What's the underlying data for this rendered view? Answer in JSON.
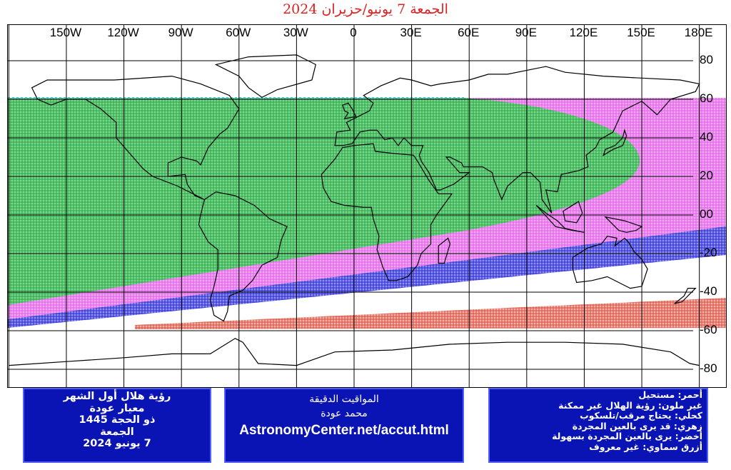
{
  "title": "الجمعة 7 يونيو/حزيران 2024",
  "map": {
    "longitude_labels": [
      {
        "text": "150W",
        "lon": -150
      },
      {
        "text": "120W",
        "lon": -120
      },
      {
        "text": "90W",
        "lon": -90
      },
      {
        "text": "60W",
        "lon": -60
      },
      {
        "text": "30W",
        "lon": -30
      },
      {
        "text": "0",
        "lon": 0
      },
      {
        "text": "30E",
        "lon": 30
      },
      {
        "text": "60E",
        "lon": 60
      },
      {
        "text": "90E",
        "lon": 90
      },
      {
        "text": "120E",
        "lon": 120
      },
      {
        "text": "150E",
        "lon": 150
      },
      {
        "text": "180E",
        "lon": 180
      }
    ],
    "latitude_labels": [
      {
        "text": "80",
        "lat": 80
      },
      {
        "text": "60",
        "lat": 60
      },
      {
        "text": "40",
        "lat": 40
      },
      {
        "text": "20",
        "lat": 20
      },
      {
        "text": "00",
        "lat": 0
      },
      {
        "text": "-20",
        "lat": -20
      },
      {
        "text": "-40",
        "lat": -40
      },
      {
        "text": "-60",
        "lat": -60
      },
      {
        "text": "-80",
        "lat": -80
      }
    ],
    "zone_colors": {
      "green": "#2fa64a",
      "magenta": "#e47ae8",
      "blue": "#3a3ad8",
      "red": "#e06050",
      "cyan": "#40c8e0"
    }
  },
  "box_left": {
    "line1": "رؤية هلال أول الشهر",
    "line2": "معيار عودة",
    "line3": "ذو الحجة 1445",
    "line4": "الجمعة",
    "line5": "7 يونيو 2024"
  },
  "box_mid": {
    "line1": "المواقيت الدقيقة",
    "line2": "محمد عودة",
    "url": "AstronomyCenter.net/accut.html"
  },
  "legend": {
    "red": "أحمر: مستحيل",
    "none": "غير ملون: رؤية الهلال غير ممكنة",
    "kohli": "كحلي: يحتاج مرقب/تلسكوب",
    "pink": "زهري: قد يرى بالعين المجردة",
    "green": "أخضر: يرى بالعين المجردة بسهولة",
    "cyan": "أزرق سماوي: غير معروف"
  },
  "box_color": "#0a14b4"
}
